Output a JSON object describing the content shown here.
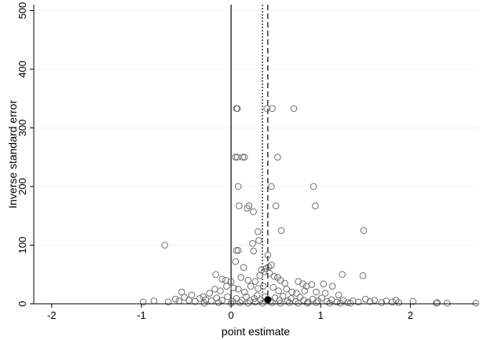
{
  "chart_data": {
    "type": "scatter",
    "title": "",
    "xlabel": "point estimate",
    "ylabel": "Inverse standard error",
    "xlim": [
      -2.2,
      2.75
    ],
    "ylim": [
      0,
      510
    ],
    "x_ticks": [
      -2,
      -1,
      0,
      1,
      2
    ],
    "x_tick_labels": [
      "-2",
      "-1",
      "0",
      "1",
      "2"
    ],
    "y_ticks": [
      0,
      100,
      200,
      300,
      400,
      500
    ],
    "y_tick_labels": [
      "0",
      "100",
      "200",
      "300",
      "400",
      "500"
    ],
    "grid": "horizontal",
    "legend": "none",
    "reference_lines": [
      {
        "x": 0,
        "style": "solid"
      },
      {
        "x": 0.35,
        "style": "dotted"
      },
      {
        "x": 0.41,
        "style": "dashed"
      }
    ],
    "highlight_point": {
      "x": 0.41,
      "y": 7
    },
    "series": [
      {
        "marker": "hollow-circle",
        "points": [
          [
            0.07,
            333
          ],
          [
            0.06,
            333
          ],
          [
            0.4,
            333
          ],
          [
            0.46,
            333
          ],
          [
            0.7,
            333
          ],
          [
            0.05,
            250
          ],
          [
            0.07,
            250
          ],
          [
            0.13,
            250
          ],
          [
            0.15,
            250
          ],
          [
            0.52,
            250
          ],
          [
            0.08,
            200
          ],
          [
            0.45,
            200
          ],
          [
            0.92,
            200
          ],
          [
            0.09,
            167
          ],
          [
            0.2,
            167
          ],
          [
            0.5,
            167
          ],
          [
            0.94,
            167
          ],
          [
            0.18,
            163
          ],
          [
            0.25,
            157
          ],
          [
            1.48,
            125
          ],
          [
            0.56,
            125
          ],
          [
            0.3,
            123
          ],
          [
            -0.74,
            100
          ],
          [
            0.24,
            103
          ],
          [
            0.31,
            108
          ],
          [
            0.06,
            91
          ],
          [
            0.08,
            91
          ],
          [
            0.25,
            90
          ],
          [
            0.41,
            83
          ],
          [
            0.45,
            66
          ],
          [
            0.42,
            63
          ],
          [
            0.05,
            72
          ],
          [
            0.14,
            62
          ],
          [
            0.34,
            58
          ],
          [
            0.39,
            60
          ],
          [
            1.47,
            48
          ],
          [
            1.24,
            50
          ],
          [
            -0.17,
            50
          ],
          [
            0.37,
            55
          ],
          [
            0.43,
            52
          ],
          [
            0.48,
            47
          ],
          [
            0.52,
            45
          ],
          [
            0.32,
            48
          ],
          [
            -0.1,
            42
          ],
          [
            -0.06,
            40
          ],
          [
            0.0,
            38
          ],
          [
            0.11,
            45
          ],
          [
            0.19,
            40
          ],
          [
            0.27,
            38
          ],
          [
            0.55,
            40
          ],
          [
            0.6,
            35
          ],
          [
            0.75,
            38
          ],
          [
            0.8,
            34
          ],
          [
            0.9,
            33
          ],
          [
            1.03,
            34
          ],
          [
            1.13,
            30
          ],
          [
            0.84,
            30
          ],
          [
            -0.55,
            20
          ],
          [
            -0.44,
            15
          ],
          [
            -0.31,
            12
          ],
          [
            -0.24,
            18
          ],
          [
            -0.18,
            25
          ],
          [
            -0.12,
            22
          ],
          [
            -0.05,
            30
          ],
          [
            0.03,
            27
          ],
          [
            0.08,
            25
          ],
          [
            0.15,
            20
          ],
          [
            0.22,
            30
          ],
          [
            0.3,
            26
          ],
          [
            0.36,
            30
          ],
          [
            0.47,
            28
          ],
          [
            0.53,
            22
          ],
          [
            0.62,
            25
          ],
          [
            0.68,
            20
          ],
          [
            0.73,
            18
          ],
          [
            0.82,
            22
          ],
          [
            0.95,
            20
          ],
          [
            1.05,
            18
          ],
          [
            1.2,
            15
          ],
          [
            -0.98,
            3
          ],
          [
            -0.86,
            5
          ],
          [
            -0.7,
            3
          ],
          [
            -0.62,
            8
          ],
          [
            -0.58,
            5
          ],
          [
            -0.52,
            11
          ],
          [
            -0.47,
            6
          ],
          [
            -0.4,
            4
          ],
          [
            -0.35,
            9
          ],
          [
            -0.28,
            7
          ],
          [
            -0.22,
            5
          ],
          [
            -0.16,
            10
          ],
          [
            -0.1,
            6
          ],
          [
            -0.04,
            12
          ],
          [
            0.02,
            4
          ],
          [
            0.06,
            9
          ],
          [
            0.12,
            6
          ],
          [
            0.17,
            12
          ],
          [
            0.21,
            5
          ],
          [
            0.26,
            9
          ],
          [
            0.29,
            14
          ],
          [
            0.33,
            7
          ],
          [
            0.38,
            12
          ],
          [
            0.44,
            5
          ],
          [
            0.49,
            10
          ],
          [
            0.54,
            6
          ],
          [
            0.58,
            13
          ],
          [
            0.63,
            5
          ],
          [
            0.67,
            9
          ],
          [
            0.72,
            4
          ],
          [
            0.77,
            11
          ],
          [
            0.81,
            6
          ],
          [
            0.86,
            3
          ],
          [
            0.91,
            8
          ],
          [
            0.97,
            5
          ],
          [
            1.01,
            10
          ],
          [
            1.07,
            4
          ],
          [
            1.12,
            7
          ],
          [
            1.18,
            3
          ],
          [
            1.25,
            6
          ],
          [
            1.3,
            2
          ],
          [
            1.36,
            5
          ],
          [
            1.42,
            3
          ],
          [
            1.5,
            8
          ],
          [
            1.55,
            4
          ],
          [
            1.6,
            6
          ],
          [
            1.68,
            2
          ],
          [
            1.73,
            5
          ],
          [
            1.8,
            3
          ],
          [
            1.84,
            6
          ],
          [
            1.87,
            2
          ],
          [
            2.03,
            4
          ],
          [
            2.3,
            2
          ],
          [
            2.29,
            1
          ],
          [
            2.41,
            1
          ],
          [
            2.73,
            1
          ],
          [
            -0.3,
            1
          ],
          [
            -0.14,
            2
          ],
          [
            0.0,
            1
          ],
          [
            0.1,
            2
          ],
          [
            0.19,
            1
          ],
          [
            0.27,
            3
          ],
          [
            0.35,
            1
          ],
          [
            0.46,
            2
          ],
          [
            0.55,
            1
          ],
          [
            0.65,
            2
          ],
          [
            0.75,
            1
          ],
          [
            0.85,
            1
          ],
          [
            0.95,
            2
          ],
          [
            1.1,
            1
          ],
          [
            1.22,
            1
          ],
          [
            1.33,
            1
          ]
        ]
      }
    ]
  }
}
